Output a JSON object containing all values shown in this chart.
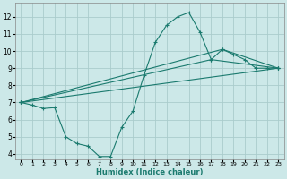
{
  "xlabel": "Humidex (Indice chaleur)",
  "bg_color": "#cce8e8",
  "grid_color": "#aacccc",
  "line_color": "#1a7a6e",
  "xlim": [
    -0.5,
    23.5
  ],
  "ylim": [
    3.7,
    12.8
  ],
  "xticks": [
    0,
    1,
    2,
    3,
    4,
    5,
    6,
    7,
    8,
    9,
    10,
    11,
    12,
    13,
    14,
    15,
    16,
    17,
    18,
    19,
    20,
    21,
    22,
    23
  ],
  "yticks": [
    4,
    5,
    6,
    7,
    8,
    9,
    10,
    11,
    12
  ],
  "line1_x": [
    0,
    1,
    2,
    3,
    4,
    5,
    6,
    7,
    8,
    9,
    10,
    11,
    12,
    13,
    14,
    15,
    16,
    17,
    18,
    19,
    20,
    21,
    22,
    23
  ],
  "line1_y": [
    7.0,
    6.85,
    6.65,
    6.7,
    5.0,
    4.6,
    4.45,
    3.85,
    3.85,
    5.55,
    6.5,
    8.6,
    10.5,
    11.5,
    12.0,
    12.25,
    11.1,
    9.5,
    10.1,
    9.8,
    9.5,
    9.0,
    9.0,
    9.0
  ],
  "line2_x": [
    0,
    23
  ],
  "line2_y": [
    7.0,
    9.0
  ],
  "line3_x": [
    0,
    18,
    23
  ],
  "line3_y": [
    7.0,
    10.1,
    9.0
  ],
  "line4_x": [
    0,
    17,
    23
  ],
  "line4_y": [
    7.0,
    9.5,
    9.0
  ]
}
